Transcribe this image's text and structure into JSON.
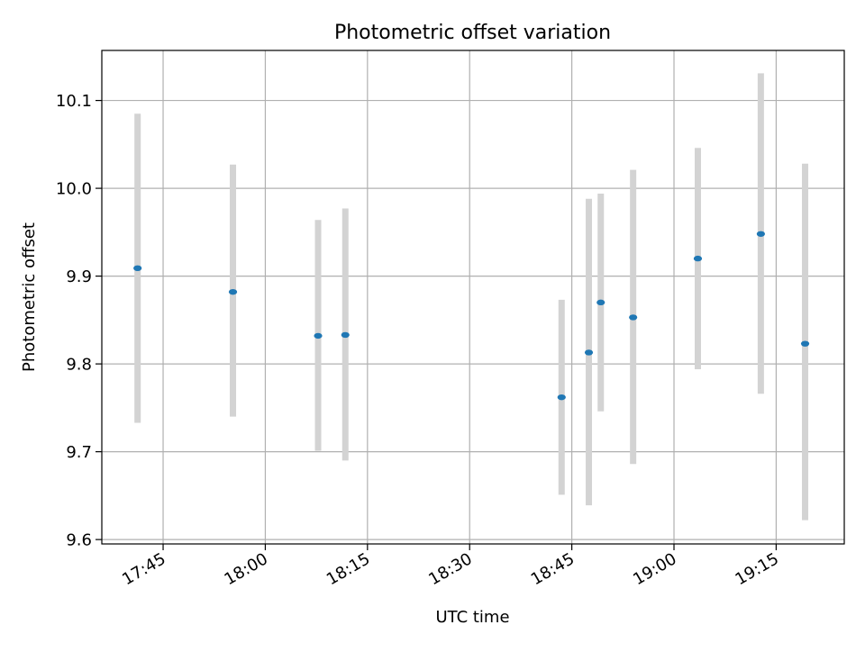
{
  "chart_data": {
    "type": "scatter",
    "title": "Photometric offset variation",
    "xlabel": "UTC time",
    "ylabel": "Photometric offset",
    "xlim": [
      "17:36",
      "19:25"
    ],
    "ylim": [
      9.595,
      10.157
    ],
    "grid": true,
    "x_ticks": [
      "17:45",
      "18:00",
      "18:15",
      "18:30",
      "18:45",
      "19:00",
      "19:15"
    ],
    "y_ticks": [
      "9.6",
      "9.7",
      "9.8",
      "9.9",
      "10.0",
      "10.1"
    ],
    "series": [
      {
        "points": [
          {
            "x": "17:41:15",
            "y": 9.909,
            "ylow": 9.733,
            "yhigh": 10.085
          },
          {
            "x": "17:55:15",
            "y": 9.882,
            "ylow": 9.74,
            "yhigh": 10.027
          },
          {
            "x": "18:07:45",
            "y": 9.832,
            "ylow": 9.701,
            "yhigh": 9.964
          },
          {
            "x": "18:11:45",
            "y": 9.833,
            "ylow": 9.69,
            "yhigh": 9.977
          },
          {
            "x": "18:43:30",
            "y": 9.762,
            "ylow": 9.651,
            "yhigh": 9.873
          },
          {
            "x": "18:47:30",
            "y": 9.813,
            "ylow": 9.639,
            "yhigh": 9.988
          },
          {
            "x": "18:49:15",
            "y": 9.87,
            "ylow": 9.746,
            "yhigh": 9.994
          },
          {
            "x": "18:54:00",
            "y": 9.853,
            "ylow": 9.686,
            "yhigh": 10.021
          },
          {
            "x": "19:03:30",
            "y": 9.92,
            "ylow": 9.794,
            "yhigh": 10.046
          },
          {
            "x": "19:12:45",
            "y": 9.948,
            "ylow": 9.766,
            "yhigh": 10.131
          },
          {
            "x": "19:19:15",
            "y": 9.823,
            "ylow": 9.622,
            "yhigh": 10.028
          }
        ]
      }
    ],
    "colors": {
      "point": "#1f77b4",
      "errorbar": "#d3d3d3",
      "grid": "#b0b0b0"
    }
  }
}
